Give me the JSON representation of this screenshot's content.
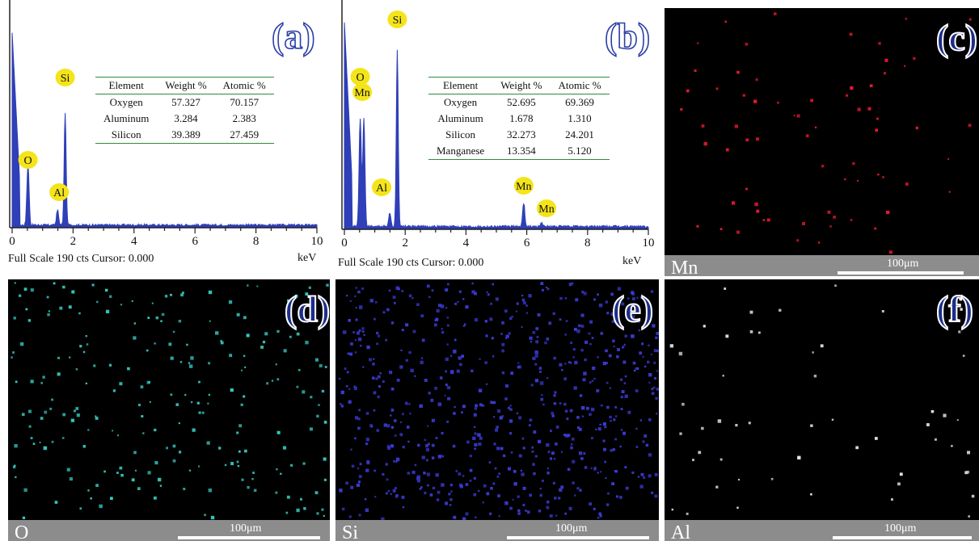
{
  "chart_data": [
    {
      "panel": "(a)",
      "type": "line",
      "xlabel": "keV",
      "xlim": [
        0,
        10
      ],
      "x_ticks": [
        "0",
        "2",
        "4",
        "6",
        "8",
        "10"
      ],
      "footer": "Full Scale 190 cts Cursor: 0.000",
      "peaks": [
        {
          "label": "O",
          "x": 0.52,
          "height": 0.33
        },
        {
          "label": "Al",
          "x": 1.49,
          "height": 0.08
        },
        {
          "label": "Si",
          "x": 1.74,
          "height": 0.6
        }
      ],
      "table": {
        "headers": [
          "Element",
          "Weight %",
          "Atomic %"
        ],
        "rows": [
          [
            "Oxygen",
            "57.327",
            "70.157"
          ],
          [
            "Aluminum",
            "3.284",
            "2.383"
          ],
          [
            "Silicon",
            "39.389",
            "27.459"
          ]
        ]
      }
    },
    {
      "panel": "(b)",
      "type": "line",
      "xlabel": "keV",
      "xlim": [
        0,
        10
      ],
      "x_ticks": [
        "0",
        "2",
        "4",
        "6",
        "8",
        "10"
      ],
      "footer": "Full Scale 190 cts Cursor: 0.000",
      "peaks": [
        {
          "label": "O",
          "x": 0.52,
          "height": 0.55
        },
        {
          "label": "Mn",
          "x": 0.64,
          "height": 0.55
        },
        {
          "label": "Al",
          "x": 1.49,
          "height": 0.07
        },
        {
          "label": "Si",
          "x": 1.74,
          "height": 0.9
        },
        {
          "label": "Mn",
          "x": 5.9,
          "height": 0.12
        },
        {
          "label": "Mn",
          "x": 6.49,
          "height": 0.02
        }
      ],
      "table": {
        "headers": [
          "Element",
          "Weight %",
          "Atomic %"
        ],
        "rows": [
          [
            "Oxygen",
            "52.695",
            "69.369"
          ],
          [
            "Aluminum",
            "1.678",
            "1.310"
          ],
          [
            "Silicon",
            "32.273",
            "24.201"
          ],
          [
            "Manganese",
            "13.354",
            "5.120"
          ]
        ]
      }
    }
  ],
  "maps": [
    {
      "panel": "(c)",
      "element": "Mn",
      "scale": "100μm",
      "dot_color": "#e8192c",
      "dot_count": 70
    },
    {
      "panel": "(d)",
      "element": "O",
      "scale": "100μm",
      "dot_color": "#36c9c0",
      "dot_count": 230
    },
    {
      "panel": "(e)",
      "element": "Si",
      "scale": "100μm",
      "dot_color": "#3b3bd6",
      "dot_count": 650
    },
    {
      "panel": "(f)",
      "element": "Al",
      "scale": "100μm",
      "dot_color": "#e6e6e6",
      "dot_count": 55
    }
  ],
  "colors": {
    "spectrum_fill": "#2f3fb8",
    "peak_label_bg": "#f4e41a",
    "table_rule": "#2e8b3a",
    "map_bar": "#8c8c8c"
  }
}
